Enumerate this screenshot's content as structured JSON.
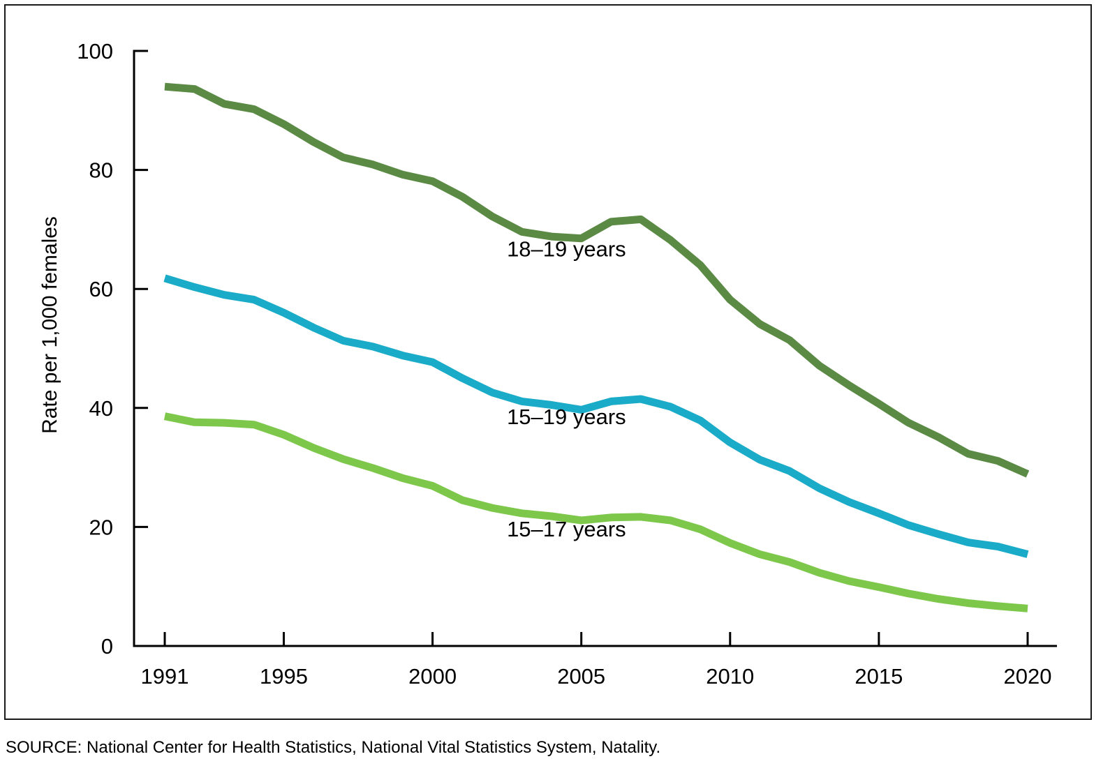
{
  "chart_data": {
    "type": "line",
    "ylabel": "Rate per 1,000 females",
    "ylim": [
      0,
      100
    ],
    "y_ticks": [
      "0",
      "20",
      "40",
      "60",
      "80",
      "100"
    ],
    "x_ticks": [
      "1991",
      "1995",
      "2000",
      "2005",
      "2010",
      "2015",
      "2020"
    ],
    "xlim": [
      1991,
      2020
    ],
    "grid": false,
    "legend": "inline labels",
    "x": [
      1991,
      1992,
      1993,
      1994,
      1995,
      1996,
      1997,
      1998,
      1999,
      2000,
      2001,
      2002,
      2003,
      2004,
      2005,
      2006,
      2007,
      2008,
      2009,
      2010,
      2011,
      2012,
      2013,
      2014,
      2015,
      2016,
      2017,
      2018,
      2019,
      2020
    ],
    "series": [
      {
        "name": "18–19 years",
        "color": "#5a8a44",
        "values": [
          94.0,
          93.6,
          91.1,
          90.2,
          87.7,
          84.7,
          82.1,
          80.9,
          79.2,
          78.1,
          75.5,
          72.2,
          69.6,
          68.8,
          68.5,
          71.3,
          71.7,
          68.2,
          64.0,
          58.2,
          54.1,
          51.4,
          47.1,
          43.8,
          40.7,
          37.5,
          35.1,
          32.3,
          31.1,
          28.9
        ],
        "label_anchor_x": 2004.5,
        "label_anchor_y": 65.5
      },
      {
        "name": "15–19 years",
        "color": "#1aabc8",
        "values": [
          61.8,
          60.3,
          59.0,
          58.2,
          56.0,
          53.5,
          51.3,
          50.3,
          48.8,
          47.7,
          45.0,
          42.6,
          41.1,
          40.5,
          39.7,
          41.1,
          41.5,
          40.2,
          37.9,
          34.2,
          31.3,
          29.4,
          26.5,
          24.2,
          22.3,
          20.3,
          18.8,
          17.4,
          16.7,
          15.4
        ],
        "label_anchor_x": 2004.5,
        "label_anchor_y": 37.3
      },
      {
        "name": "15–17 years",
        "color": "#7dc74b",
        "values": [
          38.6,
          37.6,
          37.5,
          37.2,
          35.5,
          33.3,
          31.4,
          29.9,
          28.2,
          26.9,
          24.5,
          23.2,
          22.3,
          21.8,
          21.1,
          21.6,
          21.7,
          21.1,
          19.6,
          17.3,
          15.4,
          14.1,
          12.3,
          10.9,
          9.9,
          8.8,
          7.9,
          7.2,
          6.7,
          6.3
        ],
        "label_anchor_x": 2004.5,
        "label_anchor_y": 18.4
      }
    ]
  },
  "source": "SOURCE: National Center for Health Statistics, National Vital Statistics System, Natality."
}
